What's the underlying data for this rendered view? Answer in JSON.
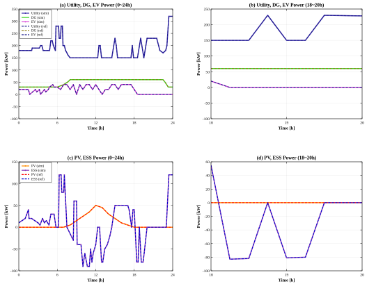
{
  "colors": {
    "utility": "#3a2ba8",
    "dg": "#44d62a",
    "ev": "#d844d8",
    "pv": "#ff8c00",
    "ess": "#8a3ab8",
    "dg_ref": "#8a7a10",
    "ref_dark": "#1a1a8a",
    "pv_ref": "#ff0000",
    "ess_ref": "#0000cc"
  },
  "chart_data": [
    {
      "type": "line",
      "title": "(a) Utility, DG, EV Power (0~24h)",
      "xlabel": "Time [h]",
      "ylabel": "Power [kW]",
      "xlim": [
        0,
        24
      ],
      "ylim": [
        -100,
        350
      ],
      "xticks": [
        0,
        6,
        12,
        18,
        24
      ],
      "yticks": [
        -100,
        -50,
        0,
        50,
        100,
        150,
        200,
        250,
        300,
        350
      ],
      "grid": true,
      "legend": {
        "position": "top-left",
        "entries": [
          {
            "label": "Utility (sim)",
            "color_key": "utility",
            "style": "solid-marker"
          },
          {
            "label": "DG (sim)",
            "color_key": "dg",
            "style": "solid"
          },
          {
            "label": "EV (sim)",
            "color_key": "ev",
            "style": "solid-marker"
          },
          {
            "label": "Utility (ref)",
            "color_key": "ref_dark",
            "style": "dashed"
          },
          {
            "label": "DG (ref)",
            "color_key": "dg_ref",
            "style": "dashed"
          },
          {
            "label": "EV (ref)",
            "color_key": "ref_dark",
            "style": "dashed"
          }
        ]
      },
      "series": [
        {
          "name": "Utility (sim)",
          "color_key": "utility",
          "marker": true,
          "x": [
            0,
            2,
            2.1,
            3.2,
            3.4,
            3.6,
            3.8,
            4.8,
            5.0,
            5.2,
            5.4,
            5.7,
            5.8,
            6.2,
            6.3,
            6.5,
            6.6,
            6.8,
            6.9,
            7.1,
            7.3,
            7.5,
            7.7,
            8,
            12.3,
            12.5,
            12.7,
            12.9,
            13.1,
            14.5,
            15,
            15.2,
            15.4,
            16,
            17.5,
            17.7,
            17.9,
            18,
            18.5,
            19,
            19.5,
            20,
            21.5,
            22,
            22.5,
            22.9,
            23.1,
            23.4,
            24
          ],
          "y": [
            180,
            180,
            190,
            190,
            200,
            200,
            180,
            180,
            220,
            220,
            200,
            180,
            280,
            280,
            230,
            230,
            280,
            280,
            200,
            200,
            180,
            170,
            160,
            150,
            150,
            200,
            200,
            150,
            150,
            150,
            230,
            200,
            150,
            150,
            150,
            200,
            150,
            150,
            150,
            230,
            150,
            230,
            230,
            180,
            170,
            180,
            200,
            320,
            320
          ]
        },
        {
          "name": "DG (sim)",
          "color_key": "dg",
          "x": [
            0,
            6,
            7,
            7.6,
            8,
            12,
            18,
            22.5,
            22.8,
            23.3,
            24
          ],
          "y": [
            30,
            30,
            40,
            50,
            60,
            60,
            60,
            60,
            50,
            30,
            30
          ]
        },
        {
          "name": "EV (sim)",
          "color_key": "ev",
          "marker": true,
          "x": [
            0,
            1.5,
            1.7,
            2.6,
            2.8,
            3.2,
            3.4,
            4,
            4.2,
            4.6,
            4.8,
            5.3,
            5.5,
            6,
            6.5,
            7,
            7.5,
            8,
            8.5,
            9,
            9.5,
            10,
            10.5,
            11,
            11.5,
            12,
            12.5,
            13,
            13.5,
            14,
            14.5,
            15,
            15.5,
            16,
            17.5,
            18,
            18.5,
            19,
            24
          ],
          "y": [
            20,
            20,
            0,
            20,
            10,
            20,
            0,
            20,
            10,
            20,
            30,
            40,
            30,
            30,
            20,
            40,
            40,
            20,
            40,
            0,
            40,
            20,
            40,
            40,
            20,
            40,
            20,
            0,
            20,
            20,
            40,
            40,
            20,
            40,
            40,
            20,
            0,
            0,
            0
          ]
        },
        {
          "name": "Utility (ref)",
          "color_key": "ref_dark",
          "dashed": true,
          "same_as": "Utility (sim)"
        },
        {
          "name": "DG (ref)",
          "color_key": "dg_ref",
          "dashed": true,
          "same_as": "DG (sim)"
        },
        {
          "name": "EV (ref)",
          "color_key": "ref_dark",
          "dashed": true,
          "same_as": "EV (sim)"
        }
      ]
    },
    {
      "type": "line",
      "title": "(b) Utility, DG, EV Power (18~20h)",
      "xlabel": "Time [h]",
      "ylabel": "Power [kW]",
      "xlim": [
        18,
        20
      ],
      "ylim": [
        -100,
        250
      ],
      "xticks": [
        18,
        19,
        20
      ],
      "yticks": [
        -100,
        -50,
        0,
        50,
        100,
        150,
        200,
        250
      ],
      "grid": true,
      "series": [
        {
          "name": "Utility (sim)",
          "color_key": "utility",
          "x": [
            18,
            18.5,
            18.75,
            19,
            19.25,
            19.5,
            20
          ],
          "y": [
            150,
            150,
            230,
            150,
            150,
            230,
            228
          ]
        },
        {
          "name": "DG (sim)",
          "color_key": "dg",
          "x": [
            18,
            20
          ],
          "y": [
            60,
            60
          ]
        },
        {
          "name": "EV (sim)",
          "color_key": "ev",
          "x": [
            18,
            18.25,
            20
          ],
          "y": [
            20,
            0,
            0
          ]
        },
        {
          "name": "Utility (ref)",
          "color_key": "ref_dark",
          "dashed": true,
          "same_as": "Utility (sim)"
        },
        {
          "name": "DG (ref)",
          "color_key": "dg_ref",
          "dashed": true,
          "same_as": "DG (sim)"
        },
        {
          "name": "EV (ref)",
          "color_key": "ref_dark",
          "dashed": true,
          "same_as": "EV (sim)"
        }
      ]
    },
    {
      "type": "line",
      "title": "(c) PV, ESS Power (0~24h)",
      "xlabel": "Time [h]",
      "ylabel": "Power [kW]",
      "xlim": [
        0,
        24
      ],
      "ylim": [
        -100,
        150
      ],
      "xticks": [
        0,
        6,
        12,
        18,
        24
      ],
      "yticks": [
        -100,
        -50,
        0,
        50,
        100,
        150
      ],
      "grid": true,
      "legend": {
        "position": "top-left",
        "entries": [
          {
            "label": "PV (sim)",
            "color_key": "pv",
            "style": "solid-marker"
          },
          {
            "label": "ESS (sim)",
            "color_key": "ess",
            "style": "solid-marker"
          },
          {
            "label": "PV (ref)",
            "color_key": "pv_ref",
            "style": "dashed"
          },
          {
            "label": "ESS (ref)",
            "color_key": "ess_ref",
            "style": "dashed"
          }
        ]
      },
      "series": [
        {
          "name": "PV (sim)",
          "color_key": "pv",
          "marker": true,
          "x": [
            0,
            6,
            7,
            8,
            9,
            10,
            11,
            12,
            13,
            14,
            15,
            16,
            17,
            18,
            24
          ],
          "y": [
            0,
            0,
            0,
            5,
            15,
            25,
            35,
            50,
            45,
            30,
            20,
            10,
            5,
            0,
            0
          ]
        },
        {
          "name": "ESS (sim)",
          "color_key": "ess",
          "marker": true,
          "x": [
            0,
            0.5,
            1,
            1.5,
            1.6,
            2,
            2.5,
            3,
            3.3,
            3.7,
            4,
            4.3,
            4.7,
            5,
            5.5,
            5.8,
            6.2,
            6.3,
            6.6,
            6.7,
            7,
            7.1,
            7.5,
            8.5,
            8.6,
            9,
            9.1,
            9.7,
            10,
            10.3,
            10.7,
            11,
            11.2,
            11.4,
            11.6,
            12,
            12.3,
            12.6,
            12.9,
            13.1,
            13.4,
            13.8,
            14.2,
            14.5,
            15,
            15.5,
            16,
            17,
            17.2,
            17.4,
            17.6,
            17.8,
            18,
            18.4,
            18.6,
            18.8,
            19.1,
            19.4,
            20,
            22.5,
            23,
            23.4,
            24
          ],
          "y": [
            10,
            15,
            20,
            40,
            20,
            20,
            15,
            10,
            5,
            20,
            10,
            15,
            5,
            30,
            30,
            0,
            0,
            120,
            120,
            80,
            80,
            120,
            0,
            -30,
            60,
            60,
            -40,
            -40,
            -90,
            -60,
            -90,
            -90,
            -50,
            -80,
            -60,
            -40,
            0,
            0,
            -80,
            -80,
            -50,
            -40,
            -20,
            0,
            50,
            50,
            50,
            50,
            40,
            20,
            0,
            40,
            40,
            -80,
            -80,
            0,
            -80,
            -80,
            0,
            0,
            0,
            120,
            120
          ]
        },
        {
          "name": "PV (ref)",
          "color_key": "pv_ref",
          "dashed": true,
          "same_as": "PV (sim)"
        },
        {
          "name": "ESS (ref)",
          "color_key": "ess_ref",
          "dashed": true,
          "same_as": "ESS (sim)"
        }
      ]
    },
    {
      "type": "line",
      "title": "(d) PV, ESS Power (18~20h)",
      "xlabel": "Time [h]",
      "ylabel": "Power [kW]",
      "xlim": [
        18,
        20
      ],
      "ylim": [
        -100,
        60
      ],
      "xticks": [
        18,
        19,
        20
      ],
      "yticks": [
        -100,
        -80,
        -60,
        -40,
        -20,
        0,
        20,
        40,
        60
      ],
      "grid": true,
      "series": [
        {
          "name": "PV (sim)",
          "color_key": "pv",
          "x": [
            18,
            20
          ],
          "y": [
            0,
            0
          ]
        },
        {
          "name": "ESS (sim)",
          "color_key": "ess",
          "x": [
            18,
            18.25,
            18.5,
            18.75,
            19,
            19.25,
            19.5,
            20
          ],
          "y": [
            55,
            -83,
            -82,
            0,
            -81,
            -80,
            0,
            0
          ]
        },
        {
          "name": "PV (ref)",
          "color_key": "pv_ref",
          "dashed": true,
          "same_as": "PV (sim)"
        },
        {
          "name": "ESS (ref)",
          "color_key": "ess_ref",
          "dashed": true,
          "same_as": "ESS (sim)"
        }
      ]
    }
  ]
}
